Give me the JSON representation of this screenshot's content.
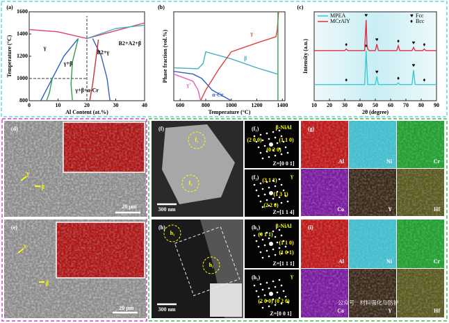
{
  "chart_data": [
    {
      "type": "line",
      "panel_label": "(a)",
      "xlabel": "Al Content (at.%)",
      "ylabel": "Temperature (°C)",
      "xlim": [
        0,
        40
      ],
      "ylim": [
        800,
        1600
      ],
      "xticks": [
        0,
        10,
        20,
        30,
        40
      ],
      "yticks": [
        800,
        1000,
        1200,
        1400,
        1600
      ],
      "ref_x": 20,
      "ref_y": 1000,
      "annotations": [
        "γ",
        "γ+β",
        "B2+γ",
        "B2+A2+β",
        "γ+β+α-Cr"
      ],
      "series": [
        {
          "color": "#e0406a",
          "x": [
            0,
            10,
            20,
            30,
            40
          ],
          "values": [
            1440,
            1420,
            1360,
            1430,
            1500
          ]
        },
        {
          "color": "#40b0b0",
          "x": [
            20,
            30,
            40
          ],
          "values": [
            1360,
            1450,
            1480
          ]
        },
        {
          "color": "#3060c0",
          "x": [
            4,
            8,
            12,
            17
          ],
          "values": [
            800,
            1000,
            1200,
            1360
          ]
        },
        {
          "color": "#30a050",
          "x": [
            17,
            15,
            14.5,
            15
          ],
          "values": [
            1360,
            1150,
            950,
            800
          ]
        },
        {
          "color": "#3060c0",
          "x": [
            22,
            25,
            27,
            28
          ],
          "values": [
            1360,
            1200,
            1000,
            800
          ]
        },
        {
          "color": "#d03030",
          "x": [
            24,
            23,
            22,
            21
          ],
          "values": [
            1350,
            1150,
            950,
            800
          ]
        },
        {
          "color": "#30a050",
          "x": [
            6,
            7,
            8
          ],
          "values": [
            800,
            870,
            1000
          ]
        }
      ]
    },
    {
      "type": "line",
      "panel_label": "(b)",
      "xlabel": "Temperature (°C)",
      "ylabel": "Phase fraction (vol.%)",
      "xlim": [
        550,
        1420
      ],
      "ylim": [
        0,
        1
      ],
      "xticks": [
        600,
        800,
        1000,
        1200,
        1400
      ],
      "series": [
        {
          "name": "γ'",
          "color": "#e060c0",
          "x": [
            550,
            700,
            740,
            760
          ],
          "values": [
            0.3,
            0.22,
            0.12,
            0
          ]
        },
        {
          "name": "α-Cr",
          "color": "#3060c0",
          "x": [
            550,
            700,
            770,
            850,
            1000
          ],
          "values": [
            0.33,
            0.3,
            0.25,
            0.12,
            0
          ]
        },
        {
          "name": "β",
          "color": "#40b0c0",
          "x": [
            550,
            740,
            780,
            800,
            1000,
            1200,
            1360
          ],
          "values": [
            0.37,
            0.36,
            0.42,
            0.55,
            0.47,
            0.37,
            0.3
          ]
        },
        {
          "name": "γ",
          "color": "#e04040",
          "x": [
            760,
            800,
            900,
            1000,
            1200,
            1350,
            1360,
            1370
          ],
          "values": [
            0,
            0.12,
            0.35,
            0.55,
            0.65,
            0.72,
            0.8,
            1.0
          ]
        },
        {
          "color": "#30a050",
          "x": [
            1365,
            1365
          ],
          "values": [
            0,
            1
          ]
        }
      ]
    },
    {
      "type": "line",
      "panel_label": "(c)",
      "xlabel": "2θ (degree)",
      "ylabel": "Intensity (a.u.)",
      "xlim": [
        10,
        90
      ],
      "ylim": [
        0,
        1.1
      ],
      "xticks": [
        10,
        20,
        30,
        40,
        50,
        60,
        70,
        80,
        90
      ],
      "markers": [
        {
          "symbol": "♥",
          "label": "Fcc"
        },
        {
          "symbol": "♦",
          "label": "Bcc"
        }
      ],
      "series": [
        {
          "name": "MPEA",
          "color": "#40c8d0",
          "peaks_fcc": [
            44,
            51,
            75
          ],
          "peaks_bcc": [
            31,
            65,
            82
          ],
          "x": [
            10,
            29,
            30,
            31,
            32,
            43,
            44,
            44.5,
            45,
            46,
            50,
            51,
            52,
            64,
            65,
            66,
            74,
            75,
            76,
            81,
            82,
            83,
            90
          ],
          "values": [
            0.2,
            0.2,
            0.2,
            0.2,
            0.2,
            0.2,
            0.62,
            0.4,
            0.2,
            0.2,
            0.2,
            0.3,
            0.2,
            0.2,
            0.22,
            0.2,
            0.2,
            0.38,
            0.2,
            0.2,
            0.2,
            0.2,
            0.2
          ]
        },
        {
          "name": "MCrAlY",
          "color": "#e03040",
          "peaks_fcc": [
            44,
            51,
            75
          ],
          "peaks_bcc": [
            31,
            65,
            82
          ],
          "x": [
            10,
            29,
            30,
            31,
            32,
            43,
            44,
            44.5,
            45,
            46,
            50,
            51,
            52,
            64,
            65,
            66,
            74,
            75,
            76,
            81,
            82,
            83,
            90
          ],
          "values": [
            0.62,
            0.62,
            0.62,
            0.64,
            0.62,
            0.62,
            1.0,
            0.7,
            0.64,
            0.62,
            0.62,
            0.7,
            0.62,
            0.62,
            0.68,
            0.62,
            0.62,
            0.66,
            0.62,
            0.62,
            0.64,
            0.62,
            0.62
          ]
        }
      ]
    }
  ],
  "micrographs": [
    {
      "label": "(d)",
      "texts": [
        "γ",
        "β",
        "20 μm"
      ]
    },
    {
      "label": "(e)",
      "texts": [
        "γ",
        "β",
        "20 μm"
      ]
    },
    {
      "label": "(f)",
      "texts": [
        "f₁",
        "f₂",
        "300 nm"
      ]
    },
    {
      "label": "(f₁)",
      "texts": [
        "β-NiAl",
        "(2 0 0)",
        "(1 1 0)",
        "(0 2 0)",
        "Z=[0 0 1]"
      ]
    },
    {
      "label": "(f₂)",
      "texts": [
        "γ",
        "(3 1 1)",
        "(1 3 1)",
        "(2 2 0)",
        "Z=[1 1 4]"
      ]
    },
    {
      "label": "(g)",
      "texts": [
        "Al",
        "Ni",
        "Cr",
        "Co",
        "Y",
        "Hf"
      ]
    },
    {
      "label": "(h)",
      "texts": [
        "h₁",
        "h₂",
        "300 nm"
      ]
    },
    {
      "label": "(h₁)",
      "texts": [
        "β-NiAl",
        "(0 1 1)",
        "(1 1 0)",
        "(1 0 1)",
        "Z=[1 1 1]"
      ]
    },
    {
      "label": "(h₂)",
      "texts": [
        "γ",
        "(2 0 0)",
        "(0 2 0)",
        "Z=[0 0 1]"
      ]
    },
    {
      "label": "(i)",
      "texts": [
        "Al",
        "Ni",
        "Cr",
        "Co",
        "Y",
        "Hf"
      ]
    }
  ],
  "watermark": "公众号 · 材料强化与防护"
}
